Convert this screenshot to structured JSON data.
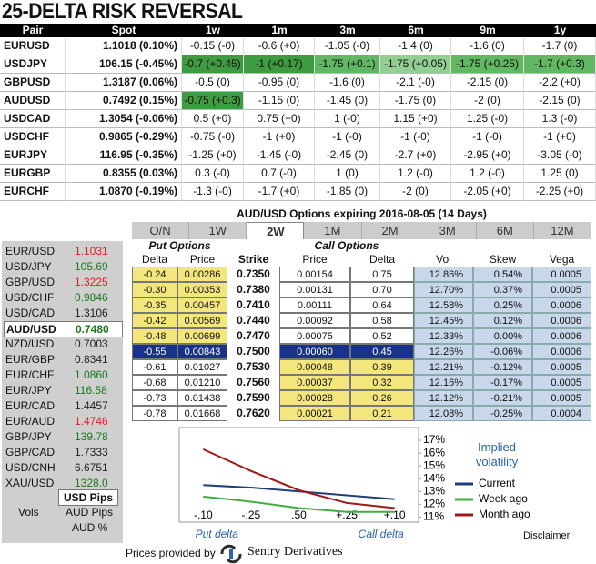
{
  "title": "25-DELTA RISK REVERSAL",
  "rr_table": {
    "header": [
      "Pair",
      "Spot",
      "1w",
      "1m",
      "3m",
      "6m",
      "9m",
      "1y"
    ],
    "rows": [
      [
        "EURUSD",
        "1.1018 (0.10%)",
        "-0.15 (-0)",
        "-0.6 (+0)",
        "-1.05 (-0)",
        "-1.4 (0)",
        "-1.6 (0)",
        "-1.7 (0)"
      ],
      [
        "USDJPY",
        "106.15 (-0.45%)",
        "-0.7 (+0.45)",
        "-1 (+0.17)",
        "-1.75 (+0.1)",
        "-1.75 (+0.05)",
        "-1.75 (+0.25)",
        "-1.7 (+0.3)"
      ],
      [
        "GBPUSD",
        "1.3187 (0.06%)",
        "-0.5 (0)",
        "-0.95 (0)",
        "-1.6 (0)",
        "-2.1 (-0)",
        "-2.15 (0)",
        "-2.2 (+0)"
      ],
      [
        "AUDUSD",
        "0.7492 (0.15%)",
        "-0.75 (+0.3)",
        "-1.15 (0)",
        "-1.45 (0)",
        "-1.75 (0)",
        "-2 (0)",
        "-2.15 (0)"
      ],
      [
        "USDCAD",
        "1.3054 (-0.06%)",
        "0.5 (+0)",
        "0.75 (+0)",
        "1 (-0)",
        "1.15 (+0)",
        "1.25 (-0)",
        "1.3 (-0)"
      ],
      [
        "USDCHF",
        "0.9865 (-0.29%)",
        "-0.75 (-0)",
        "-1 (+0)",
        "-1 (-0)",
        "-1 (-0)",
        "-1 (-0)",
        "-1 (+0)"
      ],
      [
        "EURJPY",
        "116.95 (-0.35%)",
        "-1.25 (+0)",
        "-1.45 (-0)",
        "-2.45 (0)",
        "-2.7 (+0)",
        "-2.95 (+0)",
        "-3.05 (-0)"
      ],
      [
        "EURGBP",
        "0.8355 (0.03%)",
        "0.3 (-0)",
        "0.7 (-0)",
        "1 (0)",
        "1.2 (-0)",
        "1.2 (-0)",
        "1.25 (0)"
      ],
      [
        "EURCHF",
        "1.0870 (-0.19%)",
        "-1.3 (-0)",
        "-1.7 (+0)",
        "-1.85 (0)",
        "-2 (0)",
        "-2.05 (+0)",
        "-2.25 (+0)"
      ]
    ]
  },
  "side": {
    "pairs": [
      {
        "pair": "EUR/USD",
        "price": "1.1031",
        "color": "#e02020"
      },
      {
        "pair": "USD/JPY",
        "price": "105.69",
        "color": "#1a7a1a"
      },
      {
        "pair": "GBP/USD",
        "price": "1.3225",
        "color": "#e02020"
      },
      {
        "pair": "USD/CHF",
        "price": "0.9846",
        "color": "#1a7a1a"
      },
      {
        "pair": "USD/CAD",
        "price": "1.3106",
        "color": "#222222"
      },
      {
        "pair": "AUD/USD",
        "price": "0.7480",
        "color": "#1a7a1a"
      },
      {
        "pair": "NZD/USD",
        "price": "0.7003",
        "color": "#222222"
      },
      {
        "pair": "EUR/GBP",
        "price": "0.8341",
        "color": "#222222"
      },
      {
        "pair": "EUR/CHF",
        "price": "1.0860",
        "color": "#1a7a1a"
      },
      {
        "pair": "EUR/JPY",
        "price": "116.58",
        "color": "#1a7a1a"
      },
      {
        "pair": "EUR/CAD",
        "price": "1.4457",
        "color": "#222222"
      },
      {
        "pair": "EUR/AUD",
        "price": "1.4746",
        "color": "#e02020"
      },
      {
        "pair": "GBP/JPY",
        "price": "139.78",
        "color": "#1a7a1a"
      },
      {
        "pair": "GBP/CAD",
        "price": "1.7333",
        "color": "#222222"
      },
      {
        "pair": "USD/CNH",
        "price": "6.6751",
        "color": "#222222"
      },
      {
        "pair": "XAU/USD",
        "price": "1328.0",
        "color": "#1a7a1a"
      }
    ],
    "vols_label": "Vols",
    "units": [
      "USD Pips",
      "AUD Pips",
      "AUD %"
    ]
  },
  "options": {
    "title": "AUD/USD Options expiring 2016-08-05 (14 Days)",
    "tabs": [
      "O/N",
      "1W",
      "2W",
      "1M",
      "2M",
      "3M",
      "6M",
      "12M"
    ],
    "groups": [
      "Put Options",
      "Call Options"
    ],
    "columns": [
      "Delta",
      "Price",
      "Strike",
      "Price",
      "Delta",
      "Vol",
      "Skew",
      "Vega"
    ],
    "rows": [
      [
        "-0.24",
        "0.00286",
        "0.7350",
        "0.00154",
        "0.75",
        "12.86%",
        "0.54%",
        "0.0005"
      ],
      [
        "-0.30",
        "0.00353",
        "0.7380",
        "0.00131",
        "0.70",
        "12.70%",
        "0.37%",
        "0.0005"
      ],
      [
        "-0.35",
        "0.00457",
        "0.7410",
        "0.00111",
        "0.64",
        "12.58%",
        "0.25%",
        "0.0006"
      ],
      [
        "-0.42",
        "0.00569",
        "0.7440",
        "0.00092",
        "0.58",
        "12.45%",
        "0.12%",
        "0.0006"
      ],
      [
        "-0.48",
        "0.00699",
        "0.7470",
        "0.00075",
        "0.52",
        "12.33%",
        "0.00%",
        "0.0006"
      ],
      [
        "-0.55",
        "0.00843",
        "0.7500",
        "0.00060",
        "0.45",
        "12.26%",
        "-0.06%",
        "0.0006"
      ],
      [
        "-0.61",
        "0.01027",
        "0.7530",
        "0.00048",
        "0.39",
        "12.21%",
        "-0.12%",
        "0.0005"
      ],
      [
        "-0.68",
        "0.01210",
        "0.7560",
        "0.00037",
        "0.32",
        "12.16%",
        "-0.17%",
        "0.0005"
      ],
      [
        "-0.73",
        "0.01438",
        "0.7590",
        "0.00028",
        "0.26",
        "12.12%",
        "-0.21%",
        "0.0005"
      ],
      [
        "-0.78",
        "0.01668",
        "0.7620",
        "0.00021",
        "0.21",
        "12.08%",
        "-0.25%",
        "0.0004"
      ]
    ]
  },
  "chart_data": {
    "type": "line",
    "categories": [
      "-.10",
      "-.25",
      ".50",
      "+.25",
      "+.10"
    ],
    "x_label_left": "Put delta",
    "x_label_right": "Call delta",
    "legend_title": "Implied volatility",
    "series": [
      {
        "name": "Current",
        "color": "#1f3f7a",
        "values": [
          13.5,
          13.3,
          13.0,
          12.7,
          12.4
        ]
      },
      {
        "name": "Week ago",
        "color": "#3fae3f",
        "values": [
          12.6,
          12.2,
          11.7,
          11.4,
          11.4
        ]
      },
      {
        "name": "Month ago",
        "color": "#a01818",
        "values": [
          16.3,
          14.6,
          13.1,
          12.1,
          11.7
        ]
      }
    ],
    "ylim": [
      10.6,
      18
    ],
    "yticks": [
      {
        "value": 11,
        "label": "11%"
      },
      {
        "value": 12,
        "label": "12%"
      },
      {
        "value": 13,
        "label": "13%"
      },
      {
        "value": 14,
        "label": "14%"
      },
      {
        "value": 15,
        "label": "15%"
      },
      {
        "value": 16,
        "label": "16%"
      },
      {
        "value": 17,
        "label": "17%"
      }
    ]
  },
  "footer": {
    "provided_by": "Prices provided by",
    "brand": "Sentry Derivatives",
    "disclaimer": "Disclaimer"
  }
}
